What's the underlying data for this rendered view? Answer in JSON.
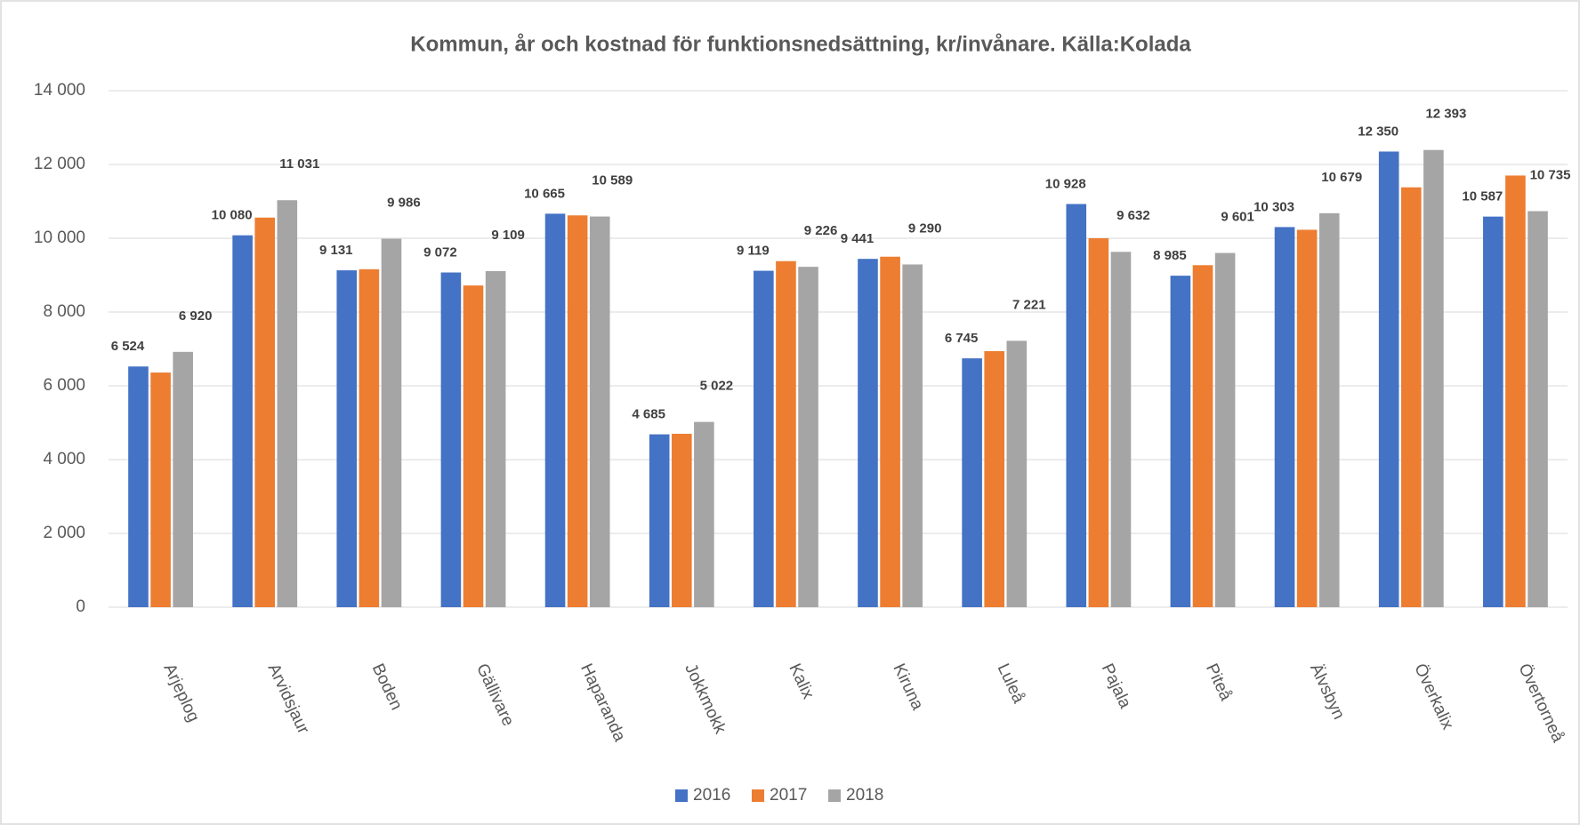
{
  "chart_data": {
    "type": "bar",
    "title": "Kommun, år och kostnad för funktionsnedsättning, kr/invånare. Källa:Kolada",
    "categories": [
      "Arjeplog",
      "Arvidsjaur",
      "Boden",
      "Gällivare",
      "Haparanda",
      "Jokkmokk",
      "Kalix",
      "Kiruna",
      "Luleå",
      "Pajala",
      "Piteå",
      "Älvsbyn",
      "Överkalix",
      "Övertorneå"
    ],
    "series": [
      {
        "name": "2016",
        "color": "#4472c4",
        "values": [
          6524,
          10080,
          9131,
          9072,
          10665,
          4685,
          9119,
          9441,
          6745,
          10928,
          8985,
          10303,
          12350,
          10587
        ],
        "value_labels": [
          "6 524",
          "10 080",
          "9 131",
          "9 072",
          "10 665",
          "4 685",
          "9 119",
          "9 441",
          "6 745",
          "10 928",
          "8 985",
          "10 303",
          "12 350",
          "10 587"
        ]
      },
      {
        "name": "2017",
        "color": "#ed7d31",
        "values": [
          6360,
          10560,
          9160,
          8720,
          10620,
          4700,
          9380,
          9500,
          6940,
          10000,
          9270,
          10230,
          11380,
          11700
        ]
      },
      {
        "name": "2018",
        "color": "#a5a5a5",
        "values": [
          6920,
          11031,
          9986,
          9109,
          10589,
          5022,
          9226,
          9290,
          7221,
          9632,
          9601,
          10679,
          12393,
          10735
        ],
        "value_labels": [
          "6 920",
          "11 031",
          "9 986",
          "9 109",
          "10 589",
          "5 022",
          "9 226",
          "9 290",
          "7 221",
          "9 632",
          "9 601",
          "10 679",
          "12 393",
          "10 735"
        ]
      }
    ],
    "ylim": [
      0,
      14000
    ],
    "yticks": [
      0,
      {
        "value": 2000,
        "label": "2 000"
      },
      {
        "value": 4000,
        "label": "4 000"
      },
      {
        "value": 6000,
        "label": "6 000"
      },
      {
        "value": 8000,
        "label": "8 000"
      },
      {
        "value": 10000,
        "label": "10 000"
      },
      {
        "value": 12000,
        "label": "12 000"
      },
      {
        "value": 14000,
        "label": "14 000"
      }
    ],
    "grid": true,
    "legend": "bottom"
  }
}
